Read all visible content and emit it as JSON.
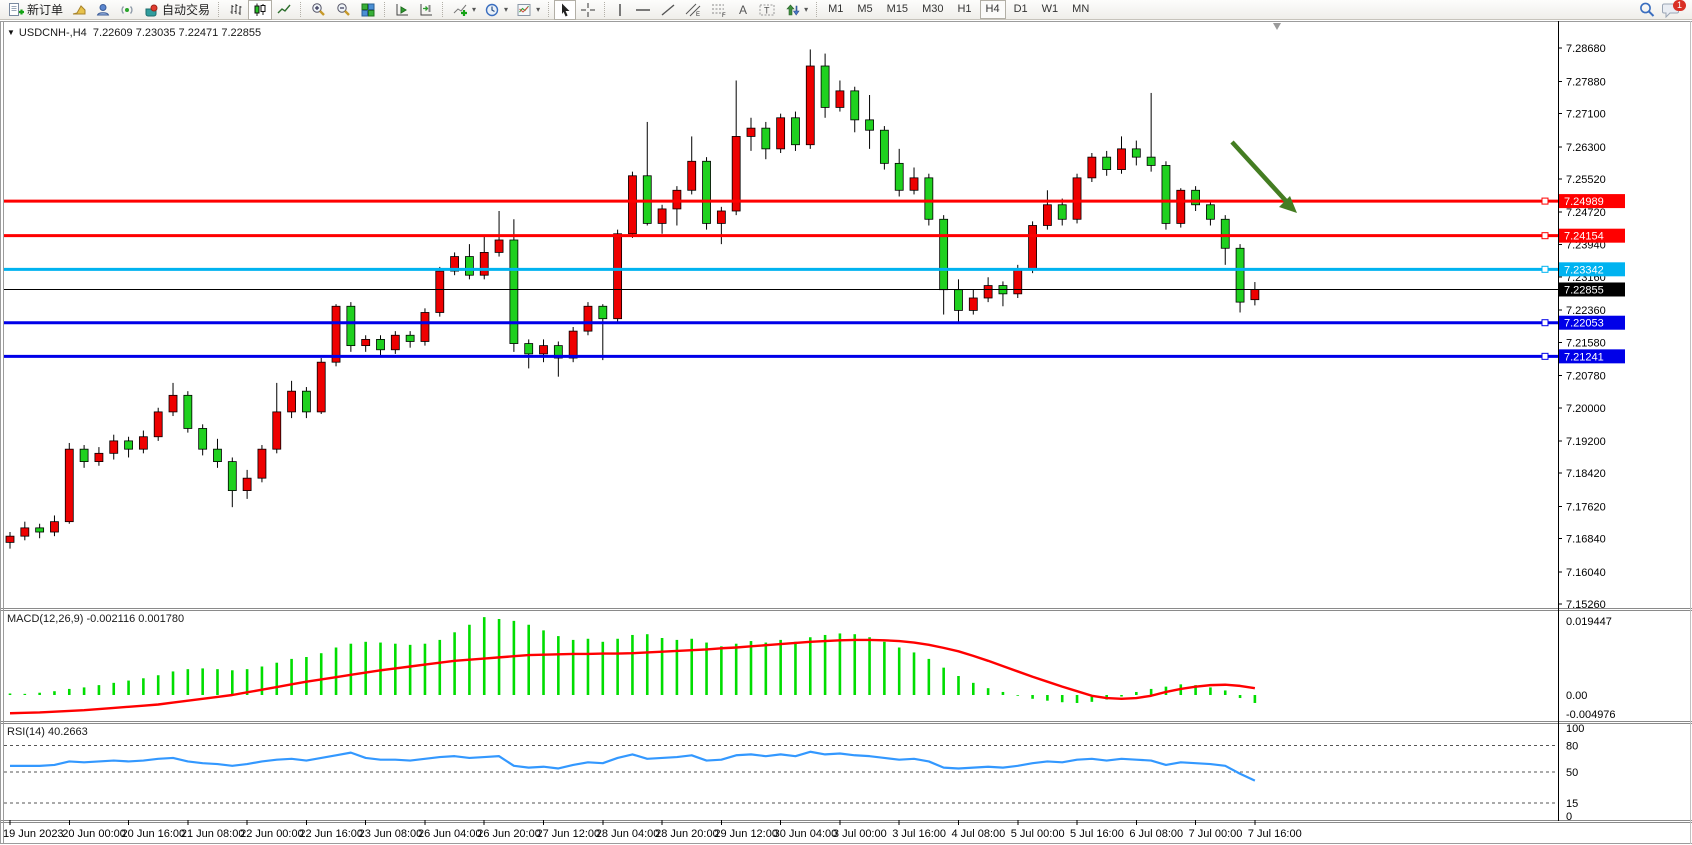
{
  "toolbar": {
    "new_order_label": "新订单",
    "autotrade_label": "自动交易",
    "timeframes": [
      "M1",
      "M5",
      "M15",
      "M30",
      "H1",
      "H4",
      "D1",
      "W1",
      "MN"
    ],
    "active_timeframe": "H4",
    "notification_count": "1"
  },
  "icons": {
    "dropdown": "▾",
    "title_marker": "▼"
  },
  "chart": {
    "title": {
      "symbol": "USDCNH-,H4",
      "ohlc": "7.22609 7.23035 7.22471 7.22855"
    }
  },
  "chart_data": [
    {
      "type": "candlestick",
      "title": "USDCNH-,H4",
      "open": "7.22609",
      "high": "7.23035",
      "low": "7.22471",
      "close": "7.22855",
      "bull_color": "#ee0000",
      "bear_color": "#1fd11f",
      "ylim": [
        7.1519,
        7.2924
      ],
      "y_ticks": [
        "7.28680",
        "7.27880",
        "7.27100",
        "7.26300",
        "7.25520",
        "7.24720",
        "7.23940",
        "7.23160",
        "7.22360",
        "7.21580",
        "7.20780",
        "7.20000",
        "7.19200",
        "7.18420",
        "7.17620",
        "7.16840",
        "7.16040",
        "7.15260"
      ],
      "x_labels": [
        "19 Jun 2023",
        "20 Jun 00:00",
        "20 Jun 16:00",
        "21 Jun 08:00",
        "22 Jun 00:00",
        "22 Jun 16:00",
        "23 Jun 08:00",
        "26 Jun 04:00",
        "26 Jun 20:00",
        "27 Jun 12:00",
        "28 Jun 04:00",
        "28 Jun 20:00",
        "29 Jun 12:00",
        "30 Jun 04:00",
        "3 Jul 00:00",
        "3 Jul 16:00",
        "4 Jul 08:00",
        "5 Jul 00:00",
        "5 Jul 16:00",
        "6 Jul 08:00",
        "7 Jul 00:00",
        "7 Jul 16:00"
      ],
      "price_lines": [
        {
          "price": 7.24989,
          "label": "7.24989",
          "color": "#ff0000",
          "width": 3,
          "handle": true
        },
        {
          "price": 7.24154,
          "label": "7.24154",
          "color": "#ff0000",
          "width": 3,
          "handle": true
        },
        {
          "price": 7.23342,
          "label": "7.23342",
          "color": "#00b3f0",
          "width": 3,
          "handle": true
        },
        {
          "price": 7.22855,
          "label": "7.22855",
          "color": "#000000",
          "width": 1,
          "handle": false
        },
        {
          "price": 7.22053,
          "label": "7.22053",
          "color": "#0000e8",
          "width": 3,
          "handle": true
        },
        {
          "price": 7.21241,
          "label": "7.21241",
          "color": "#0000e8",
          "width": 3,
          "handle": true
        }
      ],
      "annotation_arrow": {
        "color": "#447d22",
        "direction": "down-right"
      },
      "candles": [
        [
          7.1675,
          7.17,
          7.166,
          7.169
        ],
        [
          7.169,
          7.1725,
          7.168,
          7.171
        ],
        [
          7.171,
          7.172,
          7.1685,
          7.17
        ],
        [
          7.17,
          7.174,
          7.169,
          7.1725
        ],
        [
          7.1725,
          7.1915,
          7.172,
          7.19
        ],
        [
          7.19,
          7.191,
          7.1855,
          7.187
        ],
        [
          7.187,
          7.1905,
          7.186,
          7.189
        ],
        [
          7.189,
          7.1935,
          7.1875,
          7.192
        ],
        [
          7.192,
          7.193,
          7.188,
          7.19
        ],
        [
          7.19,
          7.1945,
          7.189,
          7.193
        ],
        [
          7.193,
          7.2,
          7.192,
          7.199
        ],
        [
          7.199,
          7.206,
          7.198,
          7.203
        ],
        [
          7.203,
          7.204,
          7.194,
          7.195
        ],
        [
          7.195,
          7.196,
          7.1885,
          7.19
        ],
        [
          7.19,
          7.1925,
          7.1855,
          7.187
        ],
        [
          7.187,
          7.188,
          7.176,
          7.18
        ],
        [
          7.18,
          7.185,
          7.178,
          7.183
        ],
        [
          7.183,
          7.191,
          7.182,
          7.19
        ],
        [
          7.19,
          7.206,
          7.189,
          7.199
        ],
        [
          7.199,
          7.2065,
          7.1975,
          7.204
        ],
        [
          7.204,
          7.205,
          7.1975,
          7.199
        ],
        [
          7.199,
          7.212,
          7.1985,
          7.211
        ],
        [
          7.211,
          7.225,
          7.21,
          7.2245
        ],
        [
          7.2245,
          7.2255,
          7.2135,
          7.215
        ],
        [
          7.215,
          7.2175,
          7.2135,
          7.2165
        ],
        [
          7.2165,
          7.2175,
          7.2125,
          7.214
        ],
        [
          7.214,
          7.2185,
          7.213,
          7.2175
        ],
        [
          7.2175,
          7.2185,
          7.2145,
          7.216
        ],
        [
          7.216,
          7.224,
          7.215,
          7.223
        ],
        [
          7.223,
          7.234,
          7.222,
          7.233
        ],
        [
          7.233,
          7.2375,
          7.232,
          7.2365
        ],
        [
          7.2365,
          7.2395,
          7.231,
          7.232
        ],
        [
          7.232,
          7.2415,
          7.231,
          7.2375
        ],
        [
          7.2375,
          7.2475,
          7.2365,
          7.2405
        ],
        [
          7.2405,
          7.2455,
          7.2135,
          7.2155
        ],
        [
          7.2155,
          7.2165,
          7.2095,
          7.213
        ],
        [
          7.213,
          7.2165,
          7.211,
          7.215
        ],
        [
          7.215,
          7.216,
          7.2075,
          7.212
        ],
        [
          7.212,
          7.2195,
          7.211,
          7.2185
        ],
        [
          7.2185,
          7.2255,
          7.2175,
          7.2245
        ],
        [
          7.2245,
          7.225,
          7.2115,
          7.2215
        ],
        [
          7.2215,
          7.243,
          7.2205,
          7.242
        ],
        [
          7.242,
          7.257,
          7.241,
          7.256
        ],
        [
          7.256,
          7.269,
          7.244,
          7.2445
        ],
        [
          7.2445,
          7.249,
          7.242,
          7.248
        ],
        [
          7.248,
          7.2535,
          7.244,
          7.2525
        ],
        [
          7.2525,
          7.2655,
          7.2515,
          7.2595
        ],
        [
          7.2595,
          7.2605,
          7.243,
          7.2445
        ],
        [
          7.2445,
          7.2485,
          7.2395,
          7.2475
        ],
        [
          7.2475,
          7.279,
          7.2465,
          7.2655
        ],
        [
          7.2655,
          7.27,
          7.262,
          7.2675
        ],
        [
          7.2675,
          7.269,
          7.26,
          7.2625
        ],
        [
          7.2625,
          7.271,
          7.2615,
          7.27
        ],
        [
          7.27,
          7.2715,
          7.262,
          7.2635
        ],
        [
          7.2635,
          7.2865,
          7.2625,
          7.2825
        ],
        [
          7.2825,
          7.2855,
          7.27,
          7.2725
        ],
        [
          7.2725,
          7.279,
          7.2715,
          7.2765
        ],
        [
          7.2765,
          7.2775,
          7.2665,
          7.2695
        ],
        [
          7.2695,
          7.2755,
          7.2625,
          7.267
        ],
        [
          7.267,
          7.268,
          7.2575,
          7.259
        ],
        [
          7.259,
          7.2625,
          7.251,
          7.2525
        ],
        [
          7.2525,
          7.258,
          7.2515,
          7.2555
        ],
        [
          7.2555,
          7.2565,
          7.244,
          7.2455
        ],
        [
          7.2455,
          7.2465,
          7.2225,
          7.2285
        ],
        [
          7.2285,
          7.231,
          7.2205,
          7.2235
        ],
        [
          7.2235,
          7.2285,
          7.2225,
          7.2265
        ],
        [
          7.2265,
          7.2315,
          7.2255,
          7.2295
        ],
        [
          7.2295,
          7.2305,
          7.2245,
          7.2275
        ],
        [
          7.2275,
          7.2345,
          7.2265,
          7.2335
        ],
        [
          7.2335,
          7.245,
          7.2325,
          7.244
        ],
        [
          7.244,
          7.2525,
          7.243,
          7.249
        ],
        [
          7.249,
          7.2505,
          7.244,
          7.2455
        ],
        [
          7.2455,
          7.2565,
          7.2445,
          7.2555
        ],
        [
          7.2555,
          7.2615,
          7.2545,
          7.2605
        ],
        [
          7.2605,
          7.262,
          7.256,
          7.2575
        ],
        [
          7.2575,
          7.2655,
          7.2565,
          7.2625
        ],
        [
          7.2625,
          7.2645,
          7.2585,
          7.2605
        ],
        [
          7.2605,
          7.276,
          7.257,
          7.2585
        ],
        [
          7.2585,
          7.2595,
          7.243,
          7.2445
        ],
        [
          7.2445,
          7.253,
          7.2435,
          7.2525
        ],
        [
          7.2525,
          7.2535,
          7.2475,
          7.249
        ],
        [
          7.249,
          7.25,
          7.244,
          7.2455
        ],
        [
          7.2455,
          7.2465,
          7.2345,
          7.2385
        ],
        [
          7.2385,
          7.2395,
          7.223,
          7.2255
        ],
        [
          7.22609,
          7.23035,
          7.22471,
          7.22855
        ]
      ]
    },
    {
      "type": "bar",
      "name": "MACD",
      "label": "MACD(12,26,9) -0.002116 0.001780",
      "main_value": "-0.002116",
      "signal_value": "0.001780",
      "y_labels": [
        {
          "value": 0.019447,
          "text": "0.019447"
        },
        {
          "value": 0.0,
          "text": "0.00"
        },
        {
          "value": -0.004976,
          "text": "-0.004976"
        }
      ],
      "histogram_color": "#00dd00",
      "signal_color": "#ff0000",
      "values": [
        0.0004,
        0.0003,
        0.0006,
        0.001,
        0.0016,
        0.002,
        0.0026,
        0.0032,
        0.0038,
        0.0044,
        0.0052,
        0.0062,
        0.0068,
        0.007,
        0.0068,
        0.0065,
        0.0068,
        0.0075,
        0.0085,
        0.0095,
        0.01,
        0.011,
        0.0125,
        0.0135,
        0.014,
        0.0138,
        0.0135,
        0.0132,
        0.0135,
        0.0145,
        0.0165,
        0.0185,
        0.0205,
        0.02,
        0.0195,
        0.0185,
        0.017,
        0.0155,
        0.0145,
        0.0148,
        0.014,
        0.0148,
        0.0158,
        0.016,
        0.015,
        0.0145,
        0.0148,
        0.0138,
        0.0128,
        0.0135,
        0.0142,
        0.0138,
        0.0145,
        0.014,
        0.0152,
        0.0158,
        0.0162,
        0.016,
        0.0152,
        0.014,
        0.0125,
        0.0112,
        0.0095,
        0.0072,
        0.005,
        0.0032,
        0.0018,
        0.0008,
        -0.0002,
        -0.001,
        -0.0015,
        -0.0019,
        -0.0021,
        -0.0018,
        -0.0012,
        -0.0004,
        0.0008,
        0.0016,
        0.0022,
        0.0028,
        0.0026,
        0.002,
        0.0012,
        -0.0008,
        -0.0021
      ],
      "signal": [
        -0.0048,
        -0.0047,
        -0.0046,
        -0.0044,
        -0.0042,
        -0.004,
        -0.0037,
        -0.0034,
        -0.0031,
        -0.0028,
        -0.0025,
        -0.002,
        -0.0015,
        -0.001,
        -0.0005,
        0.0,
        0.0007,
        0.0014,
        0.0021,
        0.0028,
        0.0035,
        0.0041,
        0.0047,
        0.0053,
        0.0059,
        0.0065,
        0.007,
        0.0075,
        0.008,
        0.0085,
        0.009,
        0.0093,
        0.0096,
        0.0099,
        0.0102,
        0.0105,
        0.0106,
        0.0107,
        0.0108,
        0.0108,
        0.0109,
        0.0109,
        0.011,
        0.0112,
        0.0114,
        0.0116,
        0.0118,
        0.012,
        0.0123,
        0.0125,
        0.0128,
        0.0131,
        0.0134,
        0.0137,
        0.014,
        0.0142,
        0.0144,
        0.0145,
        0.0145,
        0.0144,
        0.0142,
        0.0138,
        0.0132,
        0.0124,
        0.0115,
        0.0103,
        0.009,
        0.0076,
        0.0062,
        0.0048,
        0.0035,
        0.0022,
        0.001,
        -0.0002,
        -0.0008,
        -0.001,
        -0.0008,
        -0.0002,
        0.0008,
        0.0016,
        0.0022,
        0.0026,
        0.0027,
        0.0024,
        0.0018
      ]
    },
    {
      "type": "line",
      "name": "RSI",
      "label": "RSI(14) 40.2663",
      "current_value": "40.2663",
      "line_color": "#3398ff",
      "levels": [
        80,
        50,
        15
      ],
      "y_labels": [
        {
          "value": 100,
          "text": "100"
        },
        {
          "value": 80,
          "text": "80"
        },
        {
          "value": 50,
          "text": "50"
        },
        {
          "value": 15,
          "text": "15"
        },
        {
          "value": 0,
          "text": "0"
        }
      ],
      "values": [
        57,
        57,
        57,
        58,
        62,
        61,
        62,
        63,
        62,
        63,
        65,
        66,
        62,
        60,
        59,
        57,
        59,
        62,
        64,
        65,
        63,
        66,
        69,
        72,
        66,
        64,
        64,
        63,
        65,
        67,
        68,
        66,
        67,
        68,
        57,
        55,
        56,
        54,
        58,
        61,
        60,
        66,
        70,
        65,
        66,
        67,
        69,
        63,
        64,
        69,
        70,
        68,
        70,
        68,
        73,
        70,
        71,
        69,
        68,
        66,
        64,
        65,
        62,
        55,
        54,
        55,
        56,
        55,
        57,
        60,
        62,
        61,
        64,
        65,
        63,
        65,
        64,
        63,
        58,
        61,
        60,
        59,
        57,
        48,
        40.2663
      ]
    }
  ]
}
